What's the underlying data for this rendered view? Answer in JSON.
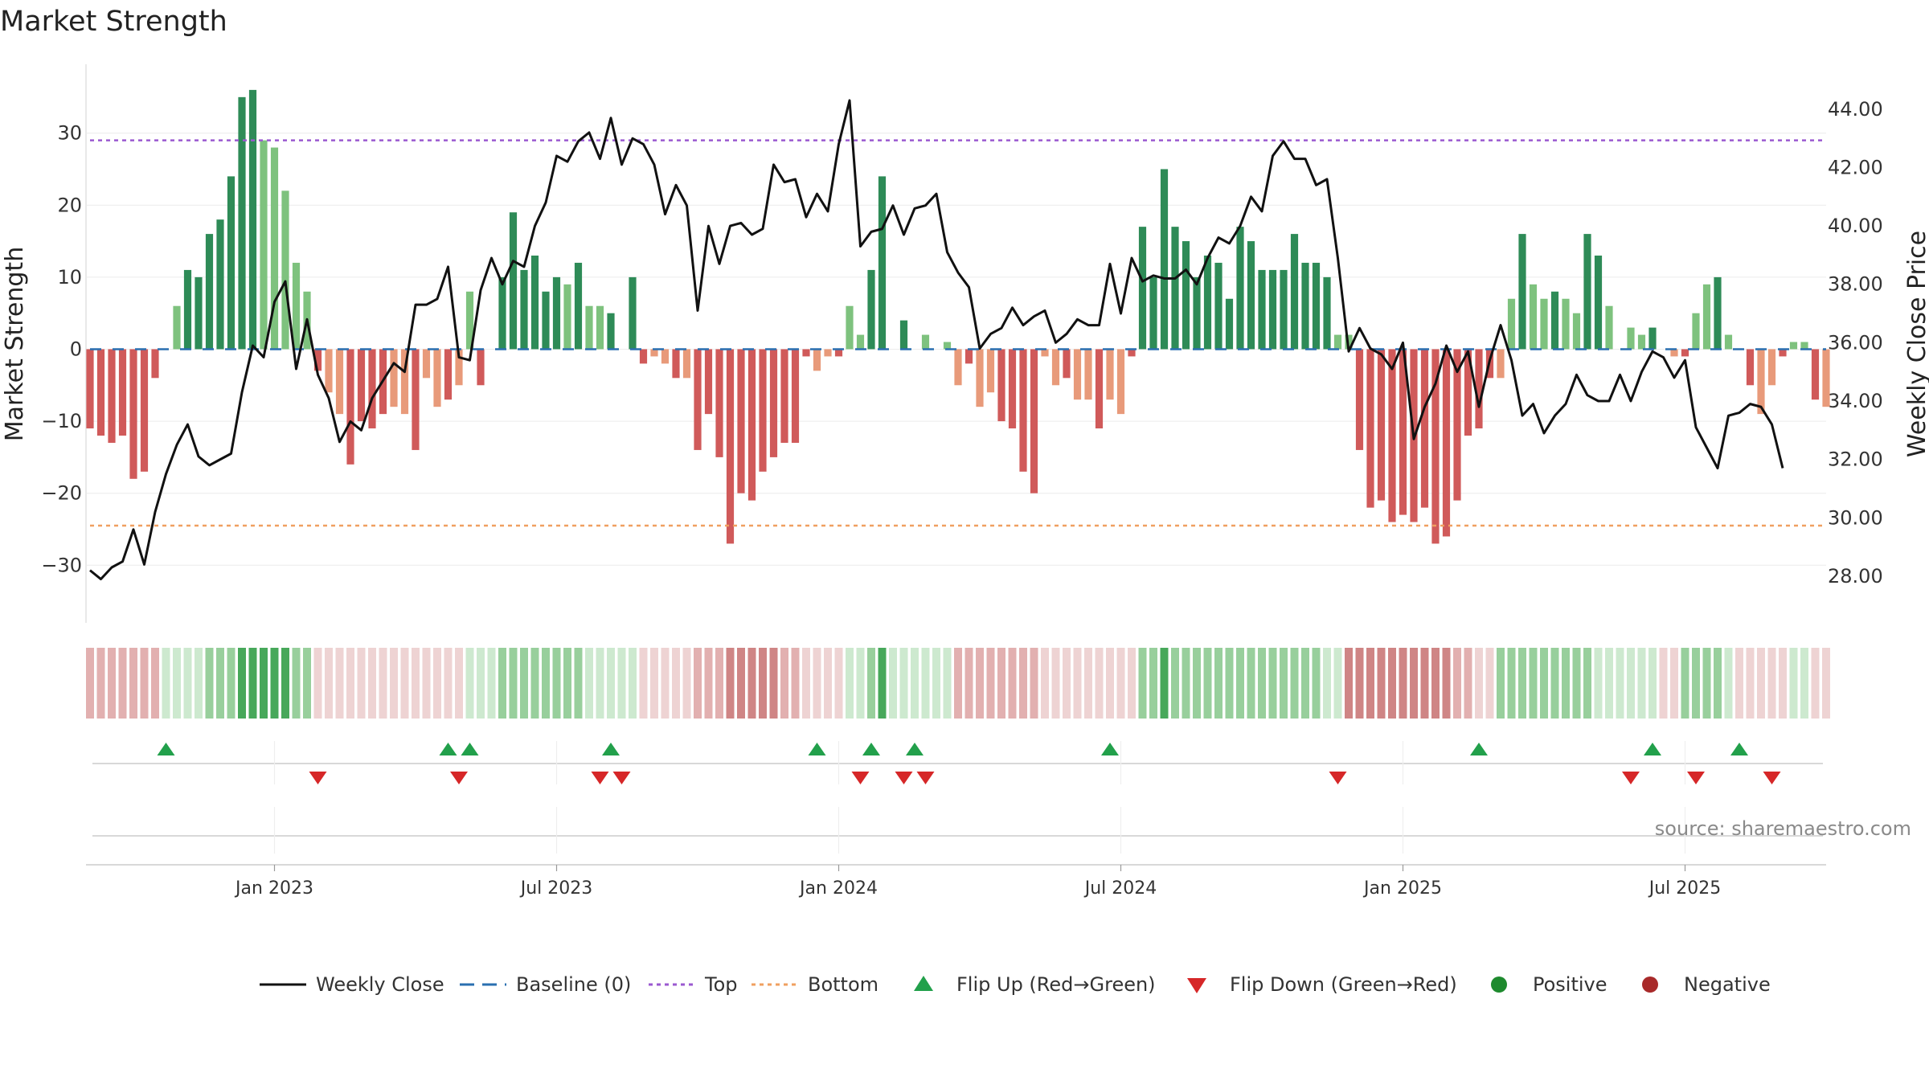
{
  "chart_data": {
    "type": "bar",
    "title": "Market Strength",
    "ylabel_left": "Market Strength",
    "ylabel_right": "Weekly Close Price",
    "source": "source: sharemaestro.com",
    "left_axis": {
      "range": [
        -38,
        39
      ],
      "ticks": [
        30,
        20,
        10,
        0,
        -10,
        -20,
        -30
      ],
      "tick_labels": [
        "30",
        "20",
        "10",
        "0",
        "−10",
        "−20",
        "−30"
      ]
    },
    "right_axis": {
      "range": [
        26.4,
        45.4
      ],
      "ticks": [
        44,
        42,
        40,
        38,
        36,
        34,
        32,
        30,
        28
      ],
      "tick_labels": [
        "44.00",
        "42.00",
        "40.00",
        "38.00",
        "36.00",
        "34.00",
        "32.00",
        "30.00",
        "28.00"
      ]
    },
    "x_ticks": [
      {
        "week": 17,
        "label": "Jan 2023"
      },
      {
        "week": 43,
        "label": "Jul 2023"
      },
      {
        "week": 69,
        "label": "Jan 2024"
      },
      {
        "week": 95,
        "label": "Jul 2024"
      },
      {
        "week": 121,
        "label": "Jan 2025"
      },
      {
        "week": 147,
        "label": "Jul 2025"
      }
    ],
    "top_level": 29,
    "bottom_level": -24.5,
    "strength": [
      -11,
      -12,
      -13,
      -12,
      -18,
      -17,
      -4,
      0,
      6,
      11,
      10,
      16,
      18,
      24,
      35,
      36,
      29,
      28,
      22,
      12,
      8,
      -3,
      -6,
      -9,
      -16,
      -10,
      -11,
      -9,
      -8,
      -9,
      -14,
      -4,
      -8,
      -7,
      -5,
      8,
      -5,
      0,
      10,
      19,
      11,
      13,
      8,
      10,
      9,
      12,
      6,
      6,
      5,
      0,
      10,
      -2,
      -1,
      -2,
      -4,
      -4,
      -14,
      -9,
      -15,
      -27,
      -20,
      -21,
      -17,
      -15,
      -13,
      -13,
      -1,
      -3,
      -1,
      -1,
      6,
      2,
      11,
      24,
      0,
      4,
      0,
      2,
      0,
      1,
      -5,
      -2,
      -8,
      -6,
      -10,
      -11,
      -17,
      -20,
      -1,
      -5,
      -4,
      -7,
      -7,
      -11,
      -7,
      -9,
      -1,
      17,
      10,
      25,
      17,
      15,
      10,
      13,
      12,
      7,
      17,
      15,
      11,
      11,
      11,
      16,
      12,
      12,
      10,
      2,
      2,
      -14,
      -22,
      -21,
      -24,
      -23,
      -24,
      -22,
      -27,
      -26,
      -21,
      -12,
      -11,
      -4,
      -4,
      7,
      16,
      9,
      7,
      8,
      7,
      5,
      16,
      13,
      6,
      0,
      3,
      2,
      3,
      0,
      -1,
      -1,
      5,
      9,
      10,
      2,
      0,
      -5,
      -9,
      -5,
      -1,
      1,
      1,
      -7,
      -8
    ],
    "weekly_close": [
      28.2,
      27.9,
      28.3,
      28.5,
      29.6,
      28.4,
      30.2,
      31.5,
      32.5,
      33.2,
      32.1,
      31.8,
      32.0,
      32.2,
      34.3,
      35.9,
      35.5,
      37.4,
      38.1,
      35.1,
      36.8,
      34.9,
      34.1,
      32.6,
      33.3,
      33.0,
      34.1,
      34.7,
      35.3,
      35.0,
      37.3,
      37.3,
      37.5,
      38.6,
      35.5,
      35.4,
      37.8,
      38.9,
      38.0,
      38.8,
      38.6,
      40.0,
      40.8,
      42.4,
      42.2,
      42.9,
      43.2,
      42.3,
      43.7,
      42.1,
      43.0,
      42.8,
      42.1,
      40.4,
      41.4,
      40.7,
      37.1,
      40.0,
      38.7,
      40.0,
      40.1,
      39.7,
      39.9,
      42.1,
      41.5,
      41.6,
      40.3,
      41.1,
      40.5,
      42.8,
      44.3,
      39.3,
      39.8,
      39.9,
      40.7,
      39.7,
      40.6,
      40.7,
      41.1,
      39.1,
      38.4,
      37.9,
      35.8,
      36.3,
      36.5,
      37.2,
      36.6,
      36.9,
      37.1,
      36.0,
      36.3,
      36.8,
      36.6,
      36.6,
      38.7,
      37.0,
      38.9,
      38.1,
      38.3,
      38.2,
      38.2,
      38.5,
      38.0,
      38.9,
      39.6,
      39.4,
      40.0,
      41.0,
      40.5,
      42.4,
      42.9,
      42.3,
      42.3,
      41.4,
      41.6,
      38.9,
      35.7,
      36.5,
      35.8,
      35.6,
      35.1,
      36.0,
      32.7,
      33.8,
      34.6,
      35.9,
      35.0,
      35.7,
      33.8,
      35.4,
      36.6,
      35.4,
      33.5,
      33.9,
      32.9,
      33.5,
      33.9,
      34.9,
      34.2,
      34.0,
      34.0,
      34.9,
      34.0,
      35.0,
      35.7,
      35.5,
      34.8,
      35.4,
      33.1,
      32.4,
      31.7,
      33.5,
      33.6,
      33.9,
      33.8,
      33.2,
      31.7
    ],
    "band_intensity": [
      -2,
      -2,
      -2,
      -2,
      -2,
      -2,
      -2,
      1,
      1,
      1,
      1,
      2,
      2,
      2,
      3,
      3,
      3,
      3,
      3,
      2,
      2,
      -1,
      -1,
      -1,
      -1,
      -1,
      -1,
      -1,
      -1,
      -1,
      -1,
      -1,
      -1,
      -1,
      -1,
      1,
      1,
      1,
      2,
      2,
      2,
      2,
      2,
      2,
      2,
      2,
      1,
      1,
      1,
      1,
      1,
      -1,
      -1,
      -1,
      -1,
      -1,
      -2,
      -2,
      -2,
      -3,
      -3,
      -3,
      -3,
      -3,
      -2,
      -2,
      -1,
      -1,
      -1,
      -1,
      1,
      1,
      2,
      3,
      1,
      1,
      1,
      1,
      1,
      1,
      -2,
      -2,
      -2,
      -2,
      -2,
      -2,
      -2,
      -2,
      -1,
      -1,
      -1,
      -1,
      -1,
      -1,
      -1,
      -1,
      -1,
      2,
      2,
      3,
      2,
      2,
      2,
      2,
      2,
      2,
      2,
      2,
      2,
      2,
      2,
      2,
      2,
      2,
      1,
      1,
      -3,
      -3,
      -3,
      -3,
      -3,
      -3,
      -3,
      -3,
      -3,
      -3,
      -2,
      -2,
      -1,
      -1,
      2,
      2,
      2,
      2,
      2,
      2,
      2,
      2,
      2,
      1,
      1,
      1,
      1,
      1,
      1,
      -1,
      -1,
      2,
      2,
      2,
      2,
      1,
      -1,
      -1,
      -1,
      -1,
      -1,
      1,
      1,
      -1,
      -1
    ],
    "flip_up_weeks": [
      7,
      33,
      35,
      48,
      67,
      72,
      76,
      94,
      128,
      144,
      152
    ],
    "flip_down_weeks": [
      21,
      34,
      47,
      49,
      71,
      75,
      77,
      115,
      142,
      148,
      155
    ],
    "legend": [
      {
        "label": "Weekly Close",
        "kind": "line-solid",
        "color": "#111111"
      },
      {
        "label": "Baseline (0)",
        "kind": "line-dashed",
        "color": "#2a6fb0"
      },
      {
        "label": "Top",
        "kind": "line-dotted",
        "color": "#9b59d0"
      },
      {
        "label": "Bottom",
        "kind": "line-dotted",
        "color": "#f0a060"
      },
      {
        "label": "Flip Up (Red→Green)",
        "kind": "triangle-up",
        "color": "#22a04b"
      },
      {
        "label": "Flip Down (Green→Red)",
        "kind": "triangle-down",
        "color": "#d62728"
      },
      {
        "label": "Positive",
        "kind": "circle",
        "color": "#1e8a2e"
      },
      {
        "label": "Negative",
        "kind": "circle",
        "color": "#a82a2a"
      }
    ],
    "colors": {
      "pos_strong": "#2e8b57",
      "pos_light": "#7ec27e",
      "neg_strong": "#d05a5a",
      "neg_light": "#e89a7a",
      "top_line": "#9b59d0",
      "bottom_line": "#f0a060",
      "baseline": "#2a6fb0",
      "price_line": "#111111",
      "flip_up": "#22a04b",
      "flip_down": "#d62728"
    }
  }
}
